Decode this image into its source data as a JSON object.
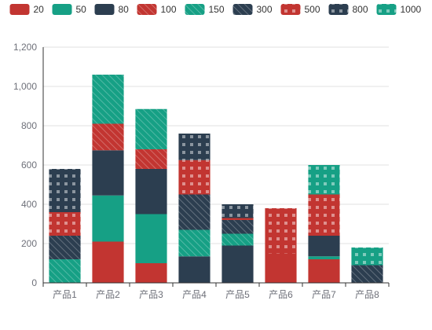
{
  "chart_data": {
    "type": "bar",
    "stacked": true,
    "categories": [
      "产品1",
      "产品2",
      "产品3",
      "产品4",
      "产品5",
      "产品6",
      "产品7",
      "产品8"
    ],
    "ylim": [
      0,
      1200
    ],
    "yticks": [
      0,
      200,
      400,
      600,
      800,
      1000,
      1200
    ],
    "ytick_labels": [
      "0",
      "200",
      "400",
      "600",
      "800",
      "1,000",
      "1,200"
    ],
    "grid": true,
    "legend_position": "top",
    "series": [
      {
        "name": "20",
        "color": "#c23531",
        "pattern": "solid",
        "values": [
          0,
          210,
          100,
          0,
          0,
          150,
          120,
          0
        ]
      },
      {
        "name": "50",
        "color": "#16a085",
        "pattern": "solid",
        "values": [
          0,
          235,
          250,
          0,
          0,
          0,
          15,
          0
        ]
      },
      {
        "name": "80",
        "color": "#2c3e50",
        "pattern": "solid",
        "values": [
          0,
          230,
          230,
          135,
          190,
          0,
          105,
          0
        ]
      },
      {
        "name": "100",
        "color": "#c23531",
        "pattern": "diagonal",
        "values": [
          0,
          135,
          100,
          0,
          0,
          0,
          0,
          0
        ]
      },
      {
        "name": "150",
        "color": "#16a085",
        "pattern": "diagonal",
        "values": [
          120,
          250,
          205,
          135,
          60,
          0,
          0,
          0
        ]
      },
      {
        "name": "300",
        "color": "#2c3e50",
        "pattern": "diagonal",
        "values": [
          120,
          0,
          0,
          180,
          70,
          0,
          0,
          90
        ]
      },
      {
        "name": "500",
        "color": "#c23531",
        "pattern": "checker",
        "values": [
          120,
          0,
          0,
          175,
          10,
          230,
          210,
          0
        ]
      },
      {
        "name": "800",
        "color": "#2c3e50",
        "pattern": "checker",
        "values": [
          220,
          0,
          0,
          135,
          70,
          0,
          0,
          0
        ]
      },
      {
        "name": "1000",
        "color": "#16a085",
        "pattern": "checker",
        "values": [
          0,
          0,
          0,
          0,
          0,
          0,
          150,
          90
        ]
      }
    ]
  }
}
